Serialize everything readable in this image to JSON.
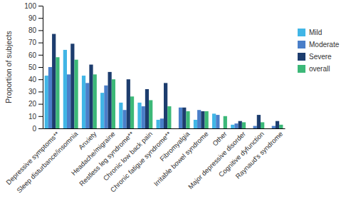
{
  "chart_data": {
    "type": "bar",
    "y_label": "Proportion of subjects",
    "categories": [
      "Depressive symptoms**",
      "Sleep disturbance/insomnia",
      "Anxiety",
      "Headache/migraine",
      "Restless leg syndrome**",
      "Chronic low back pain",
      "Chronic fatigue syndrome**",
      "Fibromyalgia",
      "Irritable bowel syndrome",
      "Other",
      "Major depressive disorder",
      "Cognitive dyfunction",
      "Raynaud's syndrome"
    ],
    "series": [
      {
        "name": "Mild",
        "color": "#41b6e6",
        "values": [
          43,
          64,
          43,
          29,
          21,
          21,
          7,
          0,
          7,
          12,
          3,
          0,
          0
        ]
      },
      {
        "name": "Moderate",
        "color": "#4a7fc9",
        "values": [
          50,
          44,
          37,
          35,
          15,
          18,
          8,
          17,
          15,
          11,
          4,
          2,
          2
        ]
      },
      {
        "name": "Severe",
        "color": "#1d3d6e",
        "values": [
          77,
          69,
          52,
          46,
          40,
          32,
          37,
          17,
          14,
          0,
          6,
          11,
          6
        ]
      },
      {
        "name": "overall",
        "color": "#3cb878",
        "values": [
          58,
          56,
          44,
          40,
          26,
          23,
          18,
          14,
          14,
          10,
          5,
          5,
          3
        ]
      }
    ],
    "ylim": [
      0,
      100
    ],
    "yticks": [
      0,
      10,
      20,
      30,
      40,
      50,
      60,
      70,
      80,
      90,
      100
    ],
    "grid": false,
    "legend": "right"
  }
}
